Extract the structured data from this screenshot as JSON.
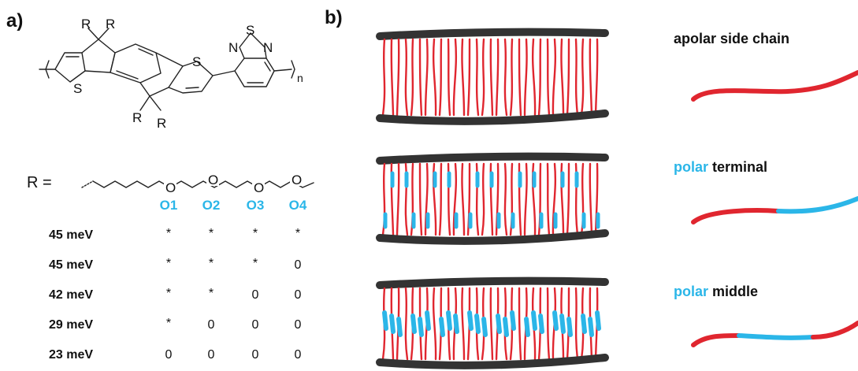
{
  "panels": {
    "a": "a)",
    "b": "b)"
  },
  "structure": {
    "r_top_left": "R",
    "r_top_right": "R",
    "r_bot_left": "R",
    "r_bot_right": "R",
    "s_left": "S",
    "s_right": "S",
    "s_btd": "S",
    "n_left": "N",
    "n_right": "N",
    "subscript": "n"
  },
  "side_chain": {
    "r_label": "R =",
    "o_atom": "O"
  },
  "table": {
    "headers": [
      "O1",
      "O2",
      "O3",
      "O4"
    ],
    "rows": [
      {
        "label": "45 meV",
        "cells": [
          "*",
          "*",
          "*",
          "*"
        ]
      },
      {
        "label": "45 meV",
        "cells": [
          "*",
          "*",
          "*",
          "0"
        ]
      },
      {
        "label": "42 meV",
        "cells": [
          "*",
          "*",
          "0",
          "0"
        ]
      },
      {
        "label": "29 meV",
        "cells": [
          "*",
          "0",
          "0",
          "0"
        ]
      },
      {
        "label": "23 meV",
        "cells": [
          "0",
          "0",
          "0",
          "0"
        ]
      }
    ]
  },
  "legend": {
    "apolar": "apolar side chain",
    "polar_terminal_hl": "polar",
    "polar_terminal_rest": " terminal",
    "polar_middle_hl": "polar",
    "polar_middle_rest": " middle"
  },
  "colors": {
    "apolar": "#e0262f",
    "polar": "#2bb6e8",
    "backbone": "#333333"
  }
}
